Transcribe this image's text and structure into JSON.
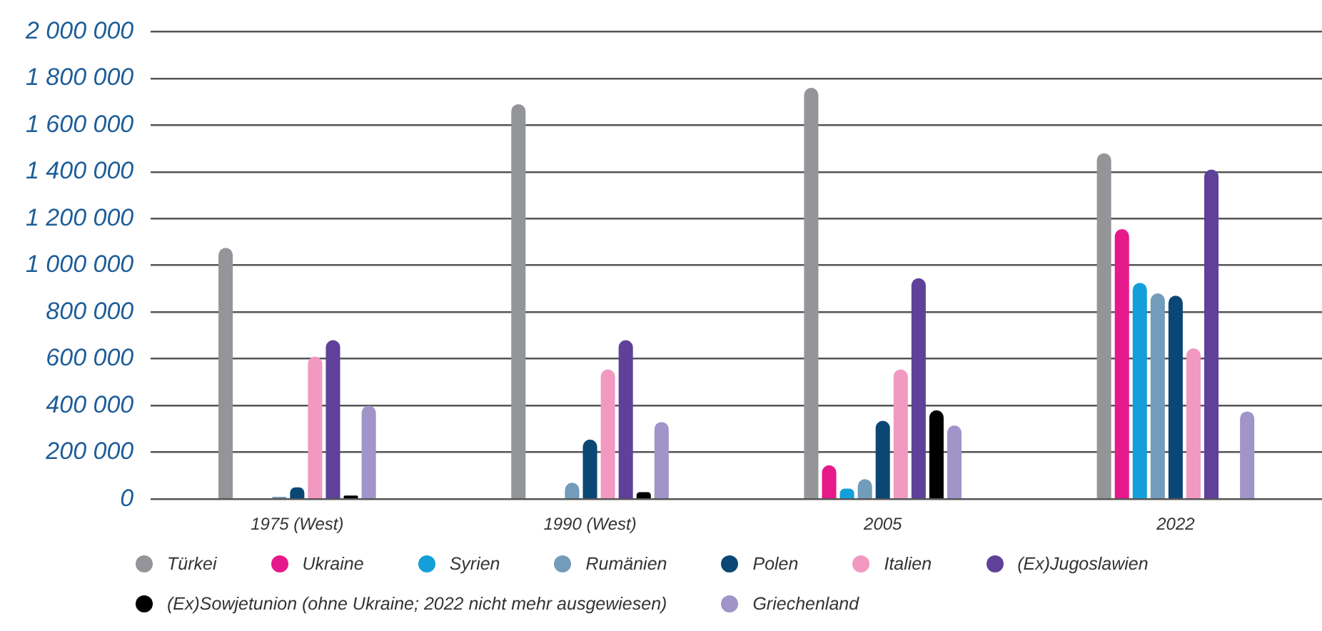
{
  "chart_data": {
    "type": "bar",
    "categories": [
      "1975 (West)",
      "1990 (West)",
      "2005",
      "2022"
    ],
    "series": [
      {
        "name": "Türkei",
        "color": "#939598",
        "values": [
          1075000,
          1690000,
          1760000,
          1480000
        ]
      },
      {
        "name": "Ukraine",
        "color": "#e6198b",
        "values": [
          null,
          null,
          145000,
          1155000
        ]
      },
      {
        "name": "Syrien",
        "color": "#159fda",
        "values": [
          null,
          null,
          45000,
          925000
        ]
      },
      {
        "name": "Rumänien",
        "color": "#739cba",
        "values": [
          10000,
          70000,
          85000,
          880000
        ]
      },
      {
        "name": "Polen",
        "color": "#0b4775",
        "values": [
          50000,
          255000,
          335000,
          870000
        ]
      },
      {
        "name": "Italien",
        "color": "#f299c1",
        "values": [
          610000,
          555000,
          555000,
          645000
        ]
      },
      {
        "name": "(Ex)Jugoslawien",
        "color": "#5f4199",
        "values": [
          680000,
          680000,
          945000,
          1410000
        ]
      },
      {
        "name": "(Ex)Sowjetunion (ohne Ukraine; 2022 nicht mehr ausgewiesen)",
        "color": "#000000",
        "values": [
          15000,
          30000,
          380000,
          null
        ]
      },
      {
        "name": "Griechenland",
        "color": "#a094c8",
        "values": [
          400000,
          330000,
          315000,
          375000
        ]
      }
    ],
    "ylim": [
      0,
      2000000
    ],
    "yticks": [
      {
        "value": 0,
        "label": "0"
      },
      {
        "value": 200000,
        "label": "200 000"
      },
      {
        "value": 400000,
        "label": "400 000"
      },
      {
        "value": 600000,
        "label": "600 000"
      },
      {
        "value": 800000,
        "label": "800 000"
      },
      {
        "value": 1000000,
        "label": "1 000 000"
      },
      {
        "value": 1200000,
        "label": "1 200 000"
      },
      {
        "value": 1400000,
        "label": "1 400 000"
      },
      {
        "value": 1600000,
        "label": "1 600 000"
      },
      {
        "value": 1800000,
        "label": "1 800 000"
      },
      {
        "value": 2000000,
        "label": "2 000 000"
      }
    ],
    "grid": "y",
    "legend": "bottom"
  }
}
